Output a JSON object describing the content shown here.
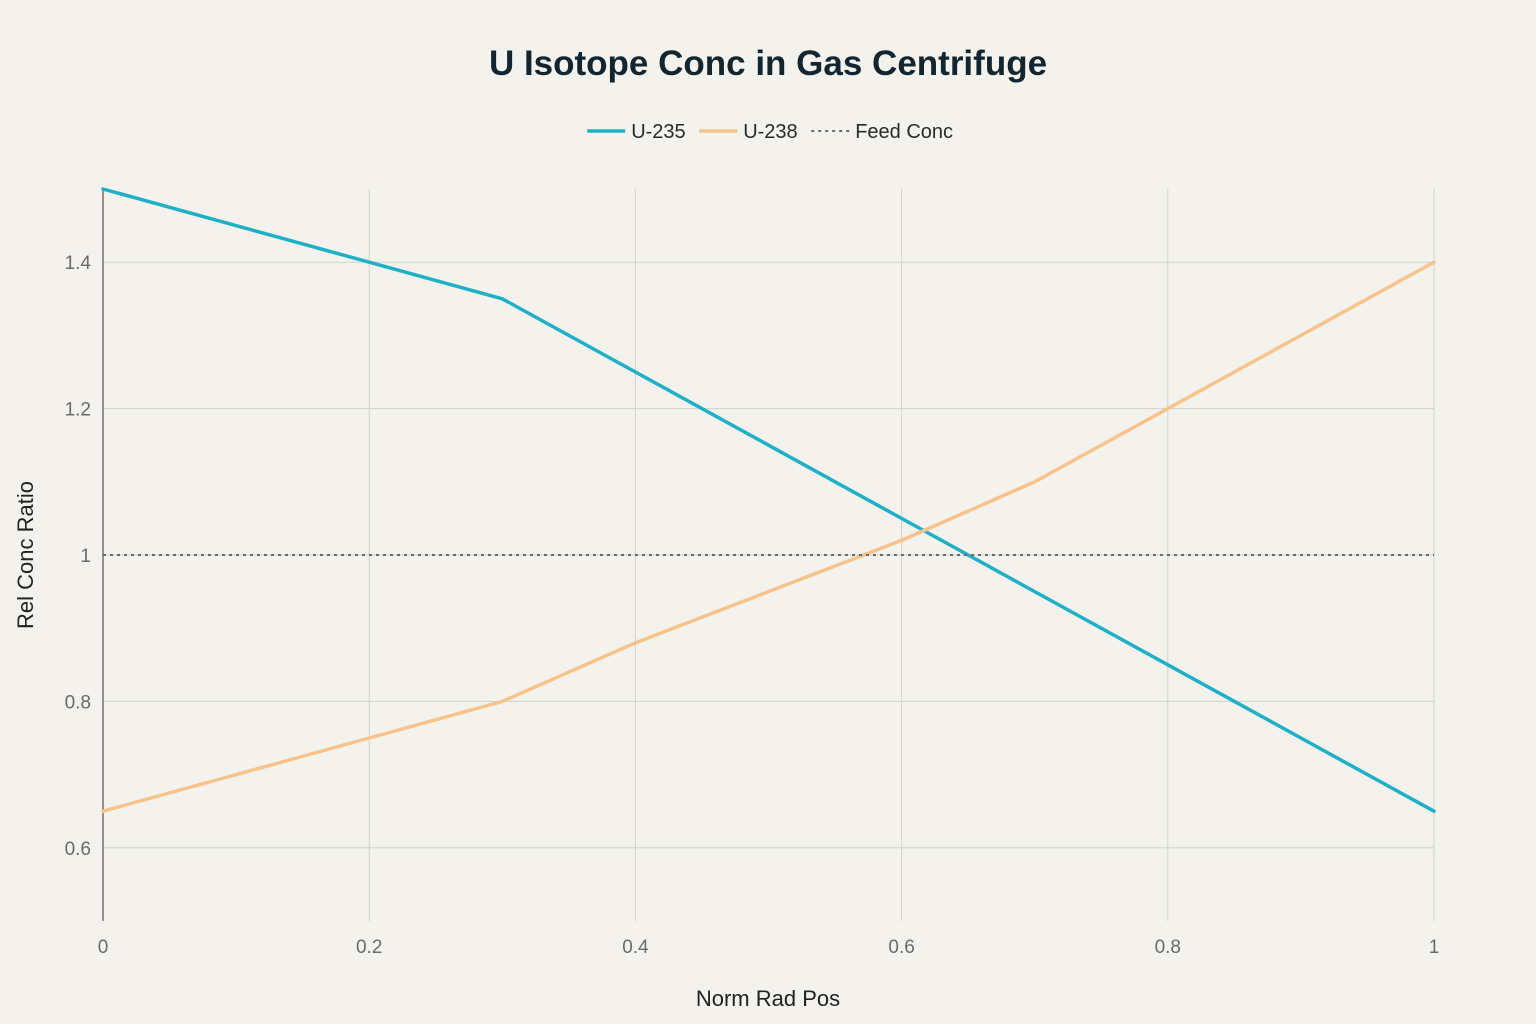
{
  "chart_data": {
    "type": "line",
    "title": "U Isotope Conc in Gas Centrifuge",
    "xlabel": "Norm Rad Pos",
    "ylabel": "Rel Conc Ratio",
    "xlim": [
      0,
      1
    ],
    "ylim": [
      0.5,
      1.5
    ],
    "x_ticks": [
      0,
      0.2,
      0.4,
      0.6,
      0.8,
      1
    ],
    "x_tick_labels": [
      "0",
      "0.2",
      "0.4",
      "0.6",
      "0.8",
      "1"
    ],
    "y_ticks": [
      0.6,
      0.8,
      1,
      1.2,
      1.4
    ],
    "y_tick_labels": [
      "0.6",
      "0.8",
      "1",
      "1.2",
      "1.4"
    ],
    "grid": true,
    "legend_position": "top-center",
    "series": [
      {
        "name": "U-235",
        "color": "#1fb0c8",
        "style": "solid",
        "x": [
          0,
          0.2,
          0.3,
          0.4,
          0.5,
          0.6,
          0.7,
          0.8,
          0.9,
          1
        ],
        "y": [
          1.5,
          1.4,
          1.35,
          1.25,
          1.15,
          1.05,
          0.95,
          0.85,
          0.75,
          0.65
        ]
      },
      {
        "name": "U-238",
        "color": "#f8c38a",
        "style": "solid",
        "x": [
          0,
          0.2,
          0.3,
          0.4,
          0.5,
          0.6,
          0.7,
          0.8,
          0.9,
          1
        ],
        "y": [
          0.65,
          0.75,
          0.8,
          0.88,
          0.95,
          1.02,
          1.1,
          1.2,
          1.3,
          1.4
        ]
      },
      {
        "name": "Feed Conc",
        "color": "#6b6b6b",
        "style": "dotted",
        "x": [
          0,
          1
        ],
        "y": [
          1,
          1
        ]
      }
    ]
  }
}
